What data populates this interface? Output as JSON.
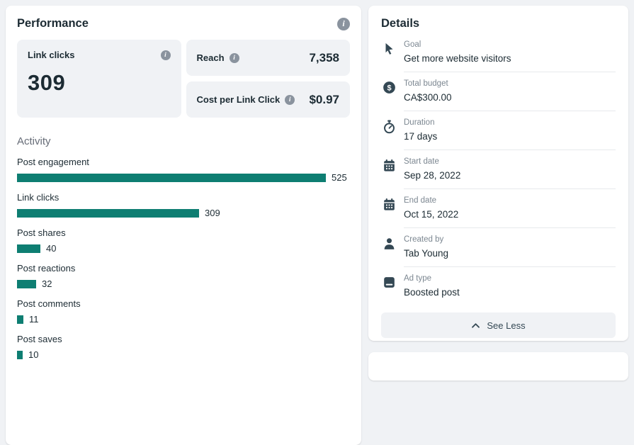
{
  "colors": {
    "accent_teal": "#0e7e72",
    "page_background": "#f0f2f5",
    "text_dark": "#1c2b33",
    "label_gray": "#7c8791",
    "icon_dark": "#344854",
    "info_gray": "#8a939e"
  },
  "performance": {
    "title": "Performance",
    "metrics": {
      "link_clicks": {
        "label": "Link clicks",
        "value": "309"
      },
      "reach": {
        "label": "Reach",
        "value": "7,358"
      },
      "cost_per_link_click": {
        "label": "Cost per Link Click",
        "value": "$0.97"
      }
    },
    "activity_title": "Activity"
  },
  "chart_data": {
    "type": "bar",
    "orientation": "horizontal",
    "title": "Activity",
    "categories": [
      "Post engagement",
      "Link clicks",
      "Post shares",
      "Post reactions",
      "Post comments",
      "Post saves"
    ],
    "values": [
      525,
      309,
      40,
      32,
      11,
      10
    ],
    "xlim": [
      0,
      525
    ],
    "bar_color": "#0e7e72",
    "grid": "off",
    "value_labels": "right of bar"
  },
  "details": {
    "title": "Details",
    "items": [
      {
        "icon": "cursor-icon",
        "label": "Goal",
        "value": "Get more website visitors"
      },
      {
        "icon": "dollar-icon",
        "label": "Total budget",
        "value": "CA$300.00"
      },
      {
        "icon": "stopwatch-icon",
        "label": "Duration",
        "value": "17 days"
      },
      {
        "icon": "calendar-icon",
        "label": "Start date",
        "value": "Sep 28, 2022"
      },
      {
        "icon": "calendar-icon",
        "label": "End date",
        "value": "Oct 15, 2022"
      },
      {
        "icon": "person-icon",
        "label": "Created by",
        "value": "Tab Young"
      },
      {
        "icon": "post-icon",
        "label": "Ad type",
        "value": "Boosted post"
      }
    ],
    "see_less_label": "See Less"
  }
}
